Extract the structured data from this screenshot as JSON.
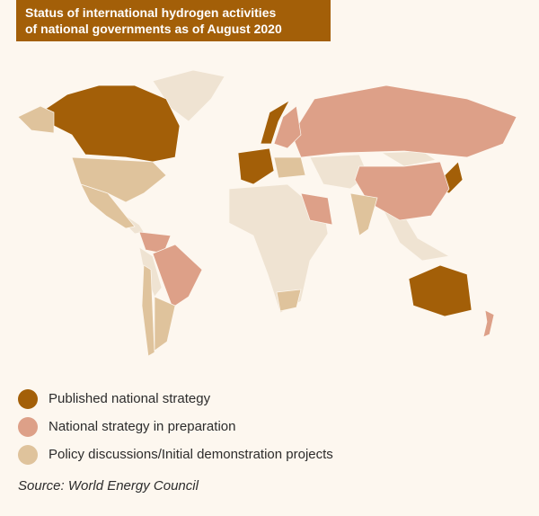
{
  "title": [
    "Status of international hydrogen activities",
    "of national governments as of August 2020"
  ],
  "legend": [
    {
      "label": "Published national strategy",
      "color": "#a35f08"
    },
    {
      "label": "National strategy in preparation",
      "color": "#dda088"
    },
    {
      "label": "Policy discussions/Initial demonstration projects",
      "color": "#dfc39c"
    }
  ],
  "source": "Source: World Energy Council"
}
